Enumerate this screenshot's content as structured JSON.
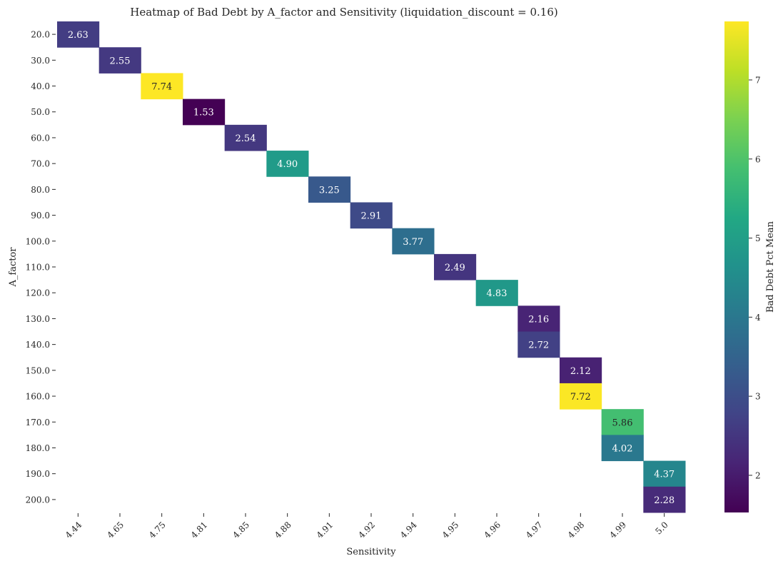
{
  "chart_data": {
    "type": "heatmap",
    "title": "Heatmap of Bad Debt by A_factor and Sensitivity (liquidation_discount = 0.16)",
    "xlabel": "Sensitivity",
    "ylabel": "A_factor",
    "x_categories": [
      "4.44",
      "4.65",
      "4.75",
      "4.81",
      "4.85",
      "4.88",
      "4.91",
      "4.92",
      "4.94",
      "4.95",
      "4.96",
      "4.97",
      "4.98",
      "4.99",
      "5.0"
    ],
    "y_categories": [
      "20.0",
      "30.0",
      "40.0",
      "50.0",
      "60.0",
      "70.0",
      "80.0",
      "90.0",
      "100.0",
      "110.0",
      "120.0",
      "130.0",
      "140.0",
      "150.0",
      "160.0",
      "170.0",
      "180.0",
      "190.0",
      "200.0"
    ],
    "cells": [
      {
        "x": "4.44",
        "y": "20.0",
        "value": 2.63
      },
      {
        "x": "4.65",
        "y": "30.0",
        "value": 2.55
      },
      {
        "x": "4.75",
        "y": "40.0",
        "value": 7.74
      },
      {
        "x": "4.81",
        "y": "50.0",
        "value": 1.53
      },
      {
        "x": "4.85",
        "y": "60.0",
        "value": 2.54
      },
      {
        "x": "4.88",
        "y": "70.0",
        "value": 4.9
      },
      {
        "x": "4.91",
        "y": "80.0",
        "value": 3.25
      },
      {
        "x": "4.92",
        "y": "90.0",
        "value": 2.91
      },
      {
        "x": "4.94",
        "y": "100.0",
        "value": 3.77
      },
      {
        "x": "4.95",
        "y": "110.0",
        "value": 2.49
      },
      {
        "x": "4.96",
        "y": "120.0",
        "value": 4.83
      },
      {
        "x": "4.97",
        "y": "130.0",
        "value": 2.16
      },
      {
        "x": "4.97",
        "y": "140.0",
        "value": 2.72
      },
      {
        "x": "4.98",
        "y": "150.0",
        "value": 2.12
      },
      {
        "x": "4.98",
        "y": "160.0",
        "value": 7.72
      },
      {
        "x": "4.99",
        "y": "170.0",
        "value": 5.86
      },
      {
        "x": "4.99",
        "y": "180.0",
        "value": 4.02
      },
      {
        "x": "5.0",
        "y": "190.0",
        "value": 4.37
      },
      {
        "x": "5.0",
        "y": "200.0",
        "value": 2.28
      }
    ],
    "colormap": "viridis",
    "colorbar": {
      "label": "Bad Debt Pct Mean",
      "range": [
        1.53,
        7.74
      ],
      "ticks": [
        2,
        3,
        4,
        5,
        6,
        7
      ]
    },
    "annotation_format": "2 decimals",
    "grid": false
  }
}
